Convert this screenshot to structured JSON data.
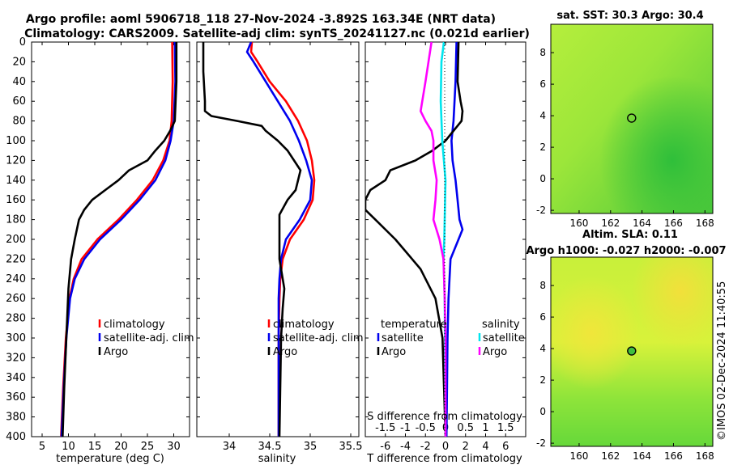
{
  "header": {
    "line1": "Argo profile: aoml 5906718_118 27-Nov-2024 -3.892S 163.34E (NRT data)",
    "line2": "Climatology: CARS2009. Satellite-adj clim: synTS_20241127.nc (0.021d earlier)"
  },
  "watermark": "©IMOS 02-Dec-2024 11:40:55",
  "colors": {
    "clim": "#ff0000",
    "sat": "#0000ee",
    "argo": "#000000",
    "sal_sat": "#00e5ee",
    "sal_argo": "#ff00ff",
    "map_green": "#6fdc3c"
  },
  "chart_data": [
    {
      "type": "line",
      "id": "temperature",
      "xlabel": "temperature (deg C)",
      "xlim": [
        3,
        33
      ],
      "ylim": [
        400,
        0
      ],
      "xticks": [
        5,
        10,
        15,
        20,
        25,
        30
      ],
      "yticks": [
        0,
        20,
        40,
        60,
        80,
        100,
        120,
        140,
        160,
        180,
        200,
        220,
        240,
        260,
        280,
        300,
        320,
        340,
        360,
        380,
        400
      ],
      "legend": [
        "climatology",
        "satellite-adj. clim",
        "Argo"
      ],
      "series": [
        {
          "name": "climatology",
          "depth": [
            0,
            40,
            80,
            100,
            120,
            140,
            160,
            180,
            200,
            220,
            240,
            260,
            300,
            350,
            400
          ],
          "values": [
            29.7,
            29.8,
            29.6,
            29.2,
            28.0,
            26.0,
            23.0,
            19.5,
            15.5,
            12.5,
            11.0,
            10.2,
            9.5,
            9.0,
            8.6
          ]
        },
        {
          "name": "satellite-adj. clim",
          "depth": [
            0,
            40,
            80,
            100,
            120,
            140,
            160,
            180,
            200,
            220,
            240,
            260,
            300,
            350,
            400
          ],
          "values": [
            30.2,
            30.3,
            30.0,
            29.4,
            28.4,
            26.5,
            23.5,
            20.0,
            16.0,
            13.0,
            11.2,
            10.3,
            9.6,
            9.1,
            8.7
          ]
        },
        {
          "name": "Argo",
          "depth": [
            0,
            40,
            80,
            90,
            100,
            110,
            120,
            130,
            140,
            150,
            160,
            170,
            180,
            200,
            220,
            250,
            300,
            350,
            400
          ],
          "values": [
            30.5,
            30.5,
            30.2,
            29.3,
            28.2,
            26.5,
            25.0,
            21.5,
            19.5,
            17.0,
            14.5,
            13.0,
            12.0,
            11.2,
            10.5,
            10.0,
            9.6,
            9.2,
            8.9
          ]
        }
      ]
    },
    {
      "type": "line",
      "id": "salinity",
      "xlabel": "salinity",
      "xlim": [
        33.6,
        35.6
      ],
      "ylim": [
        400,
        0
      ],
      "xticks": [
        34,
        34.5,
        35,
        35.5
      ],
      "legend": [
        "climatology",
        "satellite-adj. clim",
        "Argo"
      ],
      "series": [
        {
          "name": "climatology",
          "depth": [
            0,
            10,
            20,
            40,
            60,
            80,
            100,
            120,
            140,
            160,
            180,
            200,
            220,
            240,
            260,
            300,
            350,
            400
          ],
          "values": [
            34.28,
            34.27,
            34.35,
            34.5,
            34.7,
            34.85,
            34.96,
            35.02,
            35.05,
            35.03,
            34.92,
            34.75,
            34.66,
            34.63,
            34.62,
            34.61,
            34.61,
            34.61
          ]
        },
        {
          "name": "satellite-adj. clim",
          "depth": [
            0,
            10,
            20,
            40,
            60,
            80,
            100,
            120,
            140,
            160,
            180,
            200,
            220,
            240,
            260,
            300,
            350,
            400
          ],
          "values": [
            34.27,
            34.22,
            34.3,
            34.45,
            34.6,
            34.75,
            34.86,
            34.95,
            35.02,
            35.0,
            34.87,
            34.7,
            34.64,
            34.62,
            34.61,
            34.61,
            34.61,
            34.61
          ]
        },
        {
          "name": "Argo",
          "depth": [
            0,
            30,
            60,
            70,
            75,
            80,
            85,
            90,
            100,
            110,
            120,
            130,
            140,
            150,
            160,
            175,
            190,
            220,
            240,
            250,
            270,
            300,
            350,
            400
          ],
          "values": [
            33.68,
            33.68,
            33.7,
            33.7,
            33.78,
            34.1,
            34.4,
            34.45,
            34.6,
            34.72,
            34.8,
            34.88,
            34.85,
            34.82,
            34.72,
            34.62,
            34.62,
            34.62,
            34.66,
            34.68,
            34.66,
            34.64,
            34.63,
            34.62
          ]
        }
      ]
    },
    {
      "type": "line",
      "id": "difference",
      "xlabel": "T difference from climatology",
      "xlabel2": "S difference from climatology",
      "xlim": [
        -8,
        8
      ],
      "ylim": [
        400,
        0
      ],
      "xticks": [
        -6,
        -4,
        -2,
        0,
        2,
        4,
        6
      ],
      "s_ticks": [
        "-1.5",
        "-1",
        "-0.5",
        "0",
        "0.5",
        "1",
        "1.5"
      ],
      "legend_temperature": [
        "temperature",
        "satellite",
        "Argo"
      ],
      "legend_salinity": [
        "salinity",
        "satellite",
        "Argo"
      ],
      "series": [
        {
          "name": "temperature satellite",
          "depth": [
            0,
            40,
            80,
            100,
            120,
            140,
            160,
            180,
            190,
            200,
            220,
            260,
            300,
            400
          ],
          "values": [
            1.1,
            1.0,
            0.8,
            0.6,
            0.7,
            1.0,
            1.2,
            1.4,
            1.7,
            1.3,
            0.5,
            0.3,
            0.2,
            0.1
          ]
        },
        {
          "name": "temperature Argo",
          "depth": [
            0,
            40,
            60,
            70,
            80,
            100,
            110,
            120,
            130,
            140,
            150,
            160,
            170,
            180,
            200,
            230,
            260,
            300,
            400
          ],
          "values": [
            1.3,
            1.2,
            1.5,
            1.7,
            1.6,
            0.0,
            -1.3,
            -3.0,
            -5.5,
            -6.0,
            -7.5,
            -8.0,
            -8.0,
            -7.0,
            -5.0,
            -2.5,
            -1.0,
            -0.3,
            0.0
          ]
        },
        {
          "name": "salinity satellite",
          "depth": [
            0,
            20,
            60,
            100,
            140,
            180,
            200,
            220,
            260,
            400
          ],
          "values": [
            -0.04,
            -0.1,
            -0.12,
            -0.08,
            0.0,
            -0.02,
            -0.03,
            -0.05,
            -0.02,
            0.0
          ]
        },
        {
          "name": "salinity Argo",
          "depth": [
            0,
            40,
            70,
            80,
            90,
            100,
            120,
            140,
            160,
            180,
            200,
            220,
            260,
            300,
            400
          ],
          "values": [
            -0.35,
            -0.5,
            -0.62,
            -0.5,
            -0.35,
            -0.3,
            -0.3,
            -0.22,
            -0.25,
            -0.3,
            -0.15,
            -0.05,
            -0.02,
            0.0,
            0.0
          ]
        }
      ]
    },
    {
      "type": "heatmap",
      "id": "sst_map",
      "title": "sat. SST: 30.3 Argo: 30.4",
      "xticks": [
        160,
        162,
        164,
        166,
        168
      ],
      "yticks": [
        -2,
        0,
        2,
        4,
        6,
        8
      ],
      "xlim": [
        158.2,
        168.5
      ],
      "ylim": [
        -2.2,
        9.8
      ],
      "marker": {
        "lon": 163.34,
        "lat": 3.85
      }
    },
    {
      "type": "heatmap",
      "id": "sla_map",
      "title": "Altim. SLA: 0.11",
      "subtitle": "Argo h1000: -0.027 h2000: -0.007",
      "xticks": [
        160,
        162,
        164,
        166,
        168
      ],
      "yticks": [
        -2,
        0,
        2,
        4,
        6,
        8
      ],
      "xlim": [
        158.2,
        168.5
      ],
      "ylim": [
        -2.2,
        9.8
      ],
      "marker": {
        "lon": 163.34,
        "lat": 3.85
      }
    }
  ]
}
